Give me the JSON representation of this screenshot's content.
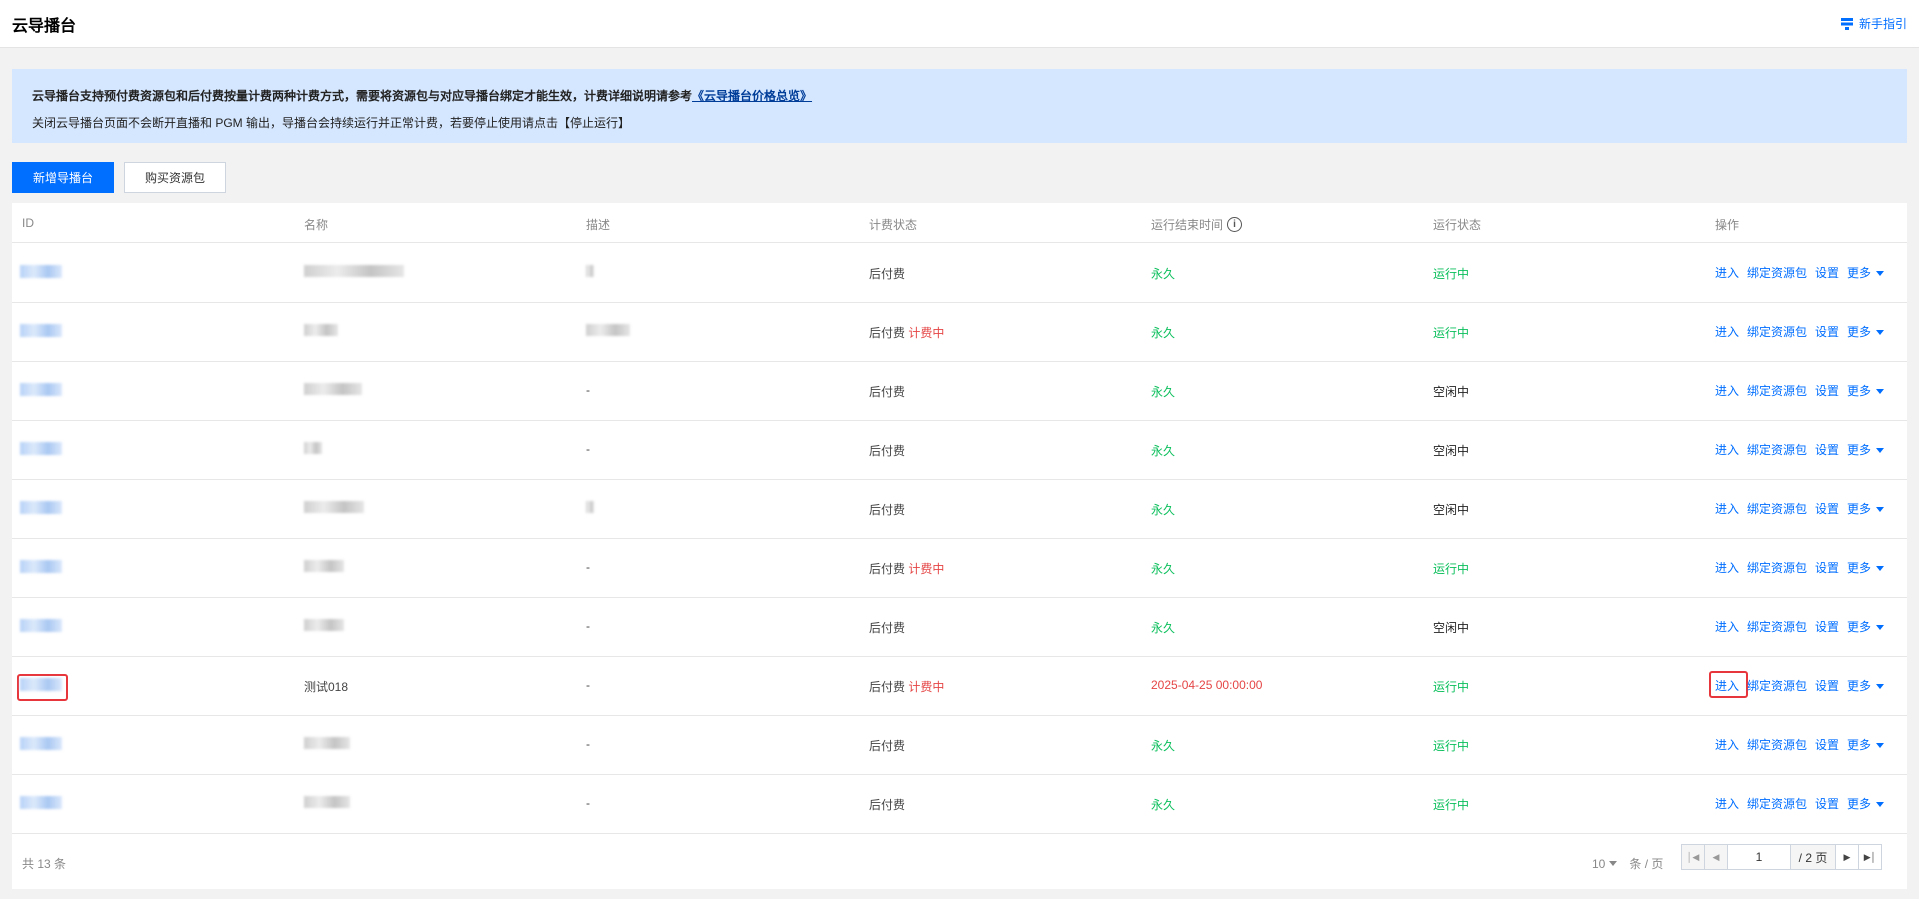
{
  "header": {
    "title": "云导播台",
    "guide_link": "新手指引"
  },
  "notice": {
    "line1_text": "云导播台支持预付费资源包和后付费按量计费两种计费方式，需要将资源包与对应导播台绑定才能生效，计费详细说明请参考",
    "line1_link": "《云导播台价格总览》",
    "line2_text": "关闭云导播台页面不会断开直播和 PGM 输出，导播台会持续运行并正常计费，若要停止使用请点击【停止运行】"
  },
  "toolbar": {
    "create_button": "新增导播台",
    "buy_button": "购买资源包"
  },
  "table": {
    "columns": [
      "ID",
      "名称",
      "描述",
      "计费状态",
      "运行结束时间",
      "运行状态",
      "操作"
    ],
    "actions": {
      "enter": "进入",
      "bind": "绑定资源包",
      "settings": "设置",
      "more": "更多"
    },
    "rows": [
      {
        "name": "",
        "desc": "",
        "billing": "后付费",
        "billing_tag": "",
        "end_time": "永久",
        "run_status": "运行中"
      },
      {
        "name": "",
        "desc": "",
        "billing": "后付费",
        "billing_tag": "计费中",
        "end_time": "永久",
        "run_status": "运行中"
      },
      {
        "name": "",
        "desc": "-",
        "billing": "后付费",
        "billing_tag": "",
        "end_time": "永久",
        "run_status": "空闲中"
      },
      {
        "name": "",
        "desc": "-",
        "billing": "后付费",
        "billing_tag": "",
        "end_time": "永久",
        "run_status": "空闲中"
      },
      {
        "name": "",
        "desc": "",
        "billing": "后付费",
        "billing_tag": "",
        "end_time": "永久",
        "run_status": "空闲中"
      },
      {
        "name": "",
        "desc": "-",
        "billing": "后付费",
        "billing_tag": "计费中",
        "end_time": "永久",
        "run_status": "运行中"
      },
      {
        "name": "",
        "desc": "-",
        "billing": "后付费",
        "billing_tag": "",
        "end_time": "永久",
        "run_status": "空闲中"
      },
      {
        "name": "测试018",
        "desc": "-",
        "billing": "后付费",
        "billing_tag": "计费中",
        "end_time": "2025-04-25 00:00:00",
        "run_status": "运行中"
      },
      {
        "name": "",
        "desc": "-",
        "billing": "后付费",
        "billing_tag": "",
        "end_time": "永久",
        "run_status": "运行中"
      },
      {
        "name": "",
        "desc": "-",
        "billing": "后付费",
        "billing_tag": "",
        "end_time": "永久",
        "run_status": "运行中"
      }
    ]
  },
  "footer": {
    "total": "共  13  条",
    "page_size": "10",
    "page_size_unit": "条 / 页",
    "current_page": "1",
    "total_pages": "/ 2 页"
  },
  "colors": {
    "accent": "#006eff",
    "running": "#0abf5b",
    "charging": "#e54545",
    "notice_bg": "#d5e7ff"
  }
}
